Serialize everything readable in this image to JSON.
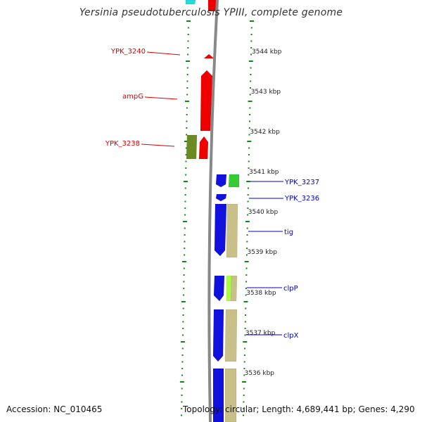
{
  "title": "Yersinia pseudotuberculosis YPIII, complete genome",
  "footer": {
    "accession": "Accession: NC_010465",
    "topology": "Topology: circular; Length: 4,689,441 bp; Genes: 4,290"
  },
  "colors": {
    "forward_cds": "#ee0000",
    "reverse_cds": "#1111dd",
    "cog_tan": "#c8c088",
    "cog_olive": "#6b8a22",
    "cog_green": "#33cc33",
    "cog_lime": "#aaff44",
    "cyan_block": "#22dddd",
    "backbone": "#888888",
    "tick_green": "#118811",
    "forward_label": "#dd0000",
    "reverse_label": "#0000cc"
  },
  "ruler": [
    {
      "label": "3544 kbp"
    },
    {
      "label": "3543 kbp"
    },
    {
      "label": "3542 kbp"
    },
    {
      "label": "3541 kbp"
    },
    {
      "label": "3540 kbp"
    },
    {
      "label": "3539 kbp"
    },
    {
      "label": "3538 kbp"
    },
    {
      "label": "3537 kbp"
    },
    {
      "label": "3536 kbp"
    }
  ],
  "forward_genes": [
    {
      "label": "YPK_3240"
    },
    {
      "label": "ampG"
    },
    {
      "label": "YPK_3238"
    }
  ],
  "reverse_genes": [
    {
      "label": "YPK_3237"
    },
    {
      "label": "YPK_3236"
    },
    {
      "label": "tig"
    },
    {
      "label": "clpP"
    },
    {
      "label": "clpX"
    }
  ]
}
